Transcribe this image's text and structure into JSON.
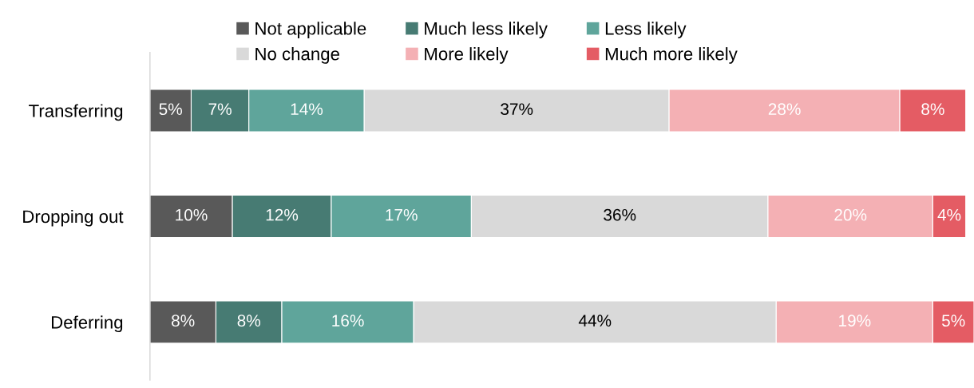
{
  "chart_data": {
    "type": "bar",
    "orientation": "horizontal",
    "stacked": true,
    "data_labels": true,
    "legend": "top",
    "grid": false,
    "tick_labels": "y",
    "xlim": [
      0,
      100
    ],
    "categories": [
      "Transferring",
      "Dropping out",
      "Deferring"
    ],
    "series": [
      {
        "name": "Not applicable",
        "color": "#595959",
        "values": [
          5,
          10,
          8
        ],
        "value_labels": [
          "5%",
          "10%",
          "8%"
        ]
      },
      {
        "name": "Much less likely",
        "color": "#477b73",
        "values": [
          7,
          12,
          8
        ],
        "value_labels": [
          "7%",
          "12%",
          "8%"
        ]
      },
      {
        "name": "Less likely",
        "color": "#5fa59b",
        "values": [
          14,
          17,
          16
        ],
        "value_labels": [
          "14%",
          "17%",
          "16%"
        ]
      },
      {
        "name": "No change",
        "color": "#d9d9d9",
        "values": [
          37,
          36,
          44
        ],
        "value_labels": [
          "37%",
          "36%",
          "44%"
        ]
      },
      {
        "name": "More likely",
        "color": "#f4b0b4",
        "values": [
          28,
          20,
          19
        ],
        "value_labels": [
          "28%",
          "20%",
          "19%"
        ]
      },
      {
        "name": "Much more likely",
        "color": "#e45c64",
        "values": [
          8,
          4,
          5
        ],
        "value_labels": [
          "8%",
          "4%",
          "5%"
        ]
      }
    ]
  }
}
